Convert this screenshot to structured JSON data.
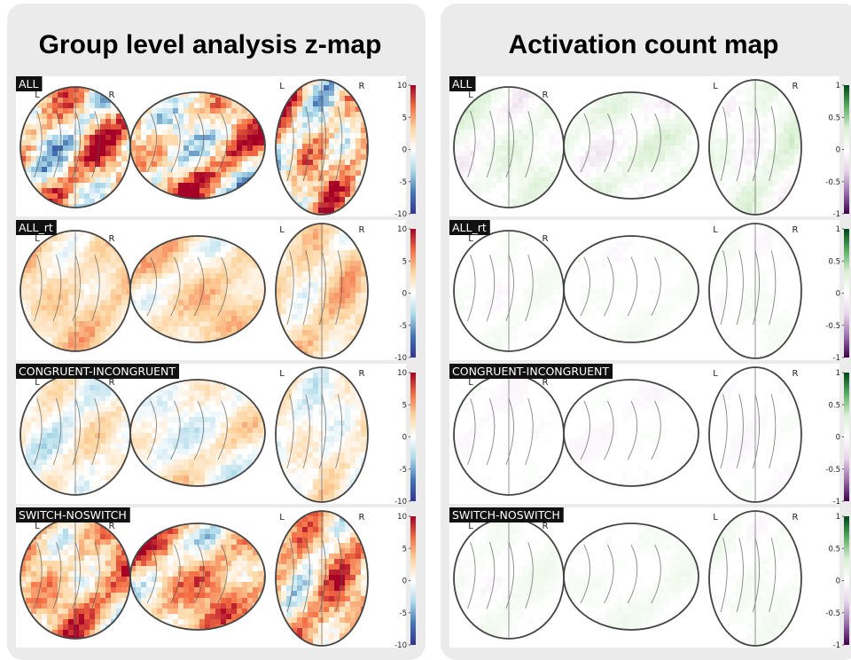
{
  "panels": [
    {
      "title": "Group level analysis z-map",
      "colorbar": {
        "lim": [
          -10,
          10
        ],
        "ticks": [
          10,
          5,
          0,
          -5,
          -10
        ],
        "colors": [
          "#313695",
          "#4575b4",
          "#abd9e9",
          "#ffffff",
          "#fdd49e",
          "#f46d43",
          "#a50026"
        ]
      },
      "rows": [
        {
          "label": "ALL"
        },
        {
          "label": "ALL_rt"
        },
        {
          "label": "CONGRUENT-INCONGRUENT"
        },
        {
          "label": "SWITCH-NOSWITCH"
        }
      ]
    },
    {
      "title": "Activation count map",
      "colorbar": {
        "lim": [
          -1,
          1
        ],
        "ticks": [
          1,
          0.5,
          0,
          -0.5,
          -1
        ],
        "colors": [
          "#40004b",
          "#9970ab",
          "#e7d4e8",
          "#ffffff",
          "#d9f0d3",
          "#5aae61",
          "#00441b"
        ]
      },
      "rows": [
        {
          "label": "ALL"
        },
        {
          "label": "ALL_rt"
        },
        {
          "label": "CONGRUENT-INCONGRUENT"
        },
        {
          "label": "SWITCH-NOSWITCH"
        }
      ]
    }
  ],
  "orientation_labels": [
    "L",
    "R"
  ]
}
